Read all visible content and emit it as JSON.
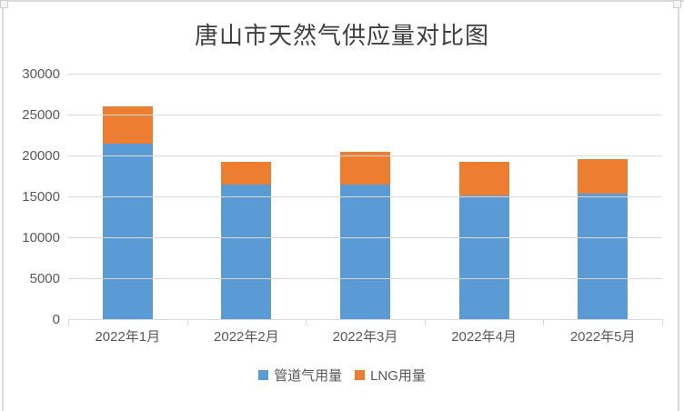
{
  "chart_data": {
    "type": "bar",
    "stacked": true,
    "title": "唐山市天然气供应量对比图",
    "categories": [
      "2022年1月",
      "2022年2月",
      "2022年3月",
      "2022年4月",
      "2022年5月"
    ],
    "series": [
      {
        "name": "管道气用量",
        "color": "#5B9BD5",
        "values": [
          21500,
          16400,
          16500,
          15100,
          15300
        ]
      },
      {
        "name": "LNG用量",
        "color": "#ED7D31",
        "values": [
          4500,
          2800,
          4000,
          4100,
          4300
        ]
      }
    ],
    "totals": [
      26000,
      19200,
      20500,
      19200,
      19600
    ],
    "xlabel": "",
    "ylabel": "",
    "ylim": [
      0,
      30000
    ],
    "yticks": [
      0,
      5000,
      10000,
      15000,
      20000,
      25000,
      30000
    ],
    "grid": true,
    "legend_position": "bottom",
    "colors": {
      "grid": "#d9d9d9",
      "axis": "#d9d9d9",
      "tick_text": "#595959",
      "title_text": "#404040",
      "frame": "#d9d9d9"
    }
  }
}
